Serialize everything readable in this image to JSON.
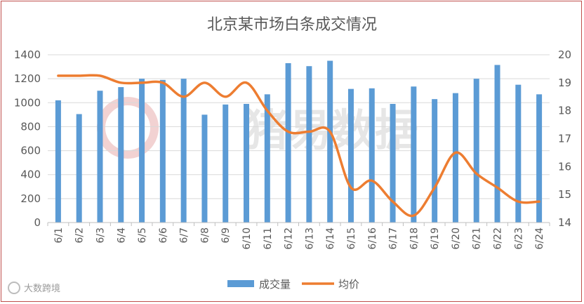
{
  "chart_data": {
    "type": "bar+line",
    "title": "北京某市场白条成交情况",
    "categories": [
      "6/1",
      "6/2",
      "6/3",
      "6/4",
      "6/5",
      "6/6",
      "6/7",
      "6/8",
      "6/9",
      "6/10",
      "6/11",
      "6/12",
      "6/13",
      "6/14",
      "6/15",
      "6/16",
      "6/17",
      "6/18",
      "6/19",
      "6/20",
      "6/21",
      "6/22",
      "6/23",
      "6/24"
    ],
    "series": [
      {
        "name": "成交量",
        "type": "bar",
        "axis": "left",
        "color": "#5b9bd5",
        "values": [
          1020,
          905,
          1100,
          1130,
          1200,
          1190,
          1200,
          900,
          985,
          990,
          1070,
          1330,
          1305,
          1350,
          1115,
          1120,
          990,
          1135,
          1030,
          1080,
          1200,
          1315,
          1150,
          1070
        ]
      },
      {
        "name": "均价",
        "type": "line",
        "axis": "right",
        "color": "#ed7d31",
        "values": [
          19.25,
          19.25,
          19.25,
          19.0,
          19.0,
          19.0,
          18.5,
          19.0,
          18.5,
          19.0,
          18.0,
          17.25,
          17.25,
          17.25,
          15.25,
          15.5,
          14.75,
          14.25,
          15.25,
          16.5,
          15.75,
          15.25,
          14.75,
          14.75
        ]
      }
    ],
    "y_left": {
      "min": 0,
      "max": 1400,
      "step": 200,
      "ticks": [
        "0",
        "200",
        "400",
        "600",
        "800",
        "1000",
        "1200",
        "1400"
      ]
    },
    "y_right": {
      "min": 14,
      "max": 20,
      "step": 1,
      "ticks": [
        "14",
        "15",
        "16",
        "17",
        "18",
        "19",
        "20"
      ]
    },
    "grid": true,
    "legend": "bottom"
  },
  "watermark": {
    "text": "猪易数据"
  },
  "footer": {
    "brand": "大数跨境"
  }
}
